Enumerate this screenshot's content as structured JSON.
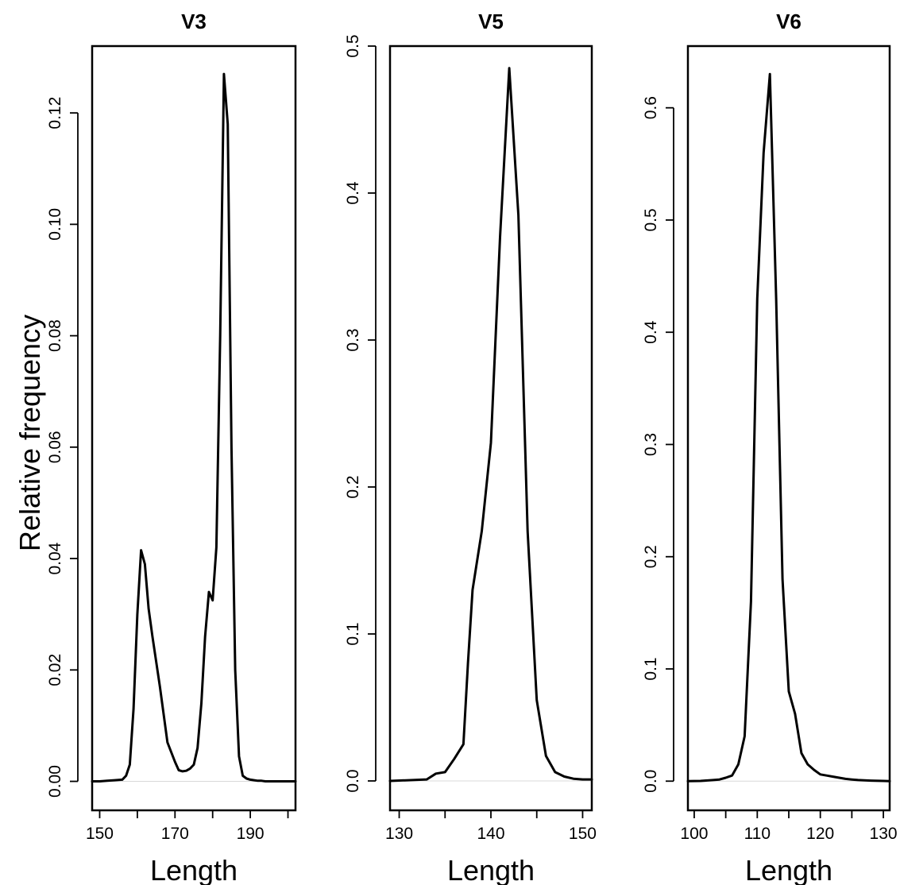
{
  "figure": {
    "ylabel": "Relative frequency"
  },
  "chart_data": [
    {
      "type": "line",
      "title": "V3",
      "xlabel": "Length",
      "ylabel": "Relative frequency",
      "xlim": [
        148,
        202
      ],
      "ylim": [
        -0.0052,
        0.132
      ],
      "xticks": [
        150,
        160,
        170,
        180,
        190,
        200
      ],
      "xtick_labels": [
        "150",
        "",
        "170",
        "",
        "190",
        ""
      ],
      "yticks": [
        0,
        0.02,
        0.04,
        0.06,
        0.08,
        0.1,
        0.12
      ],
      "ytick_labels": [
        "0.00",
        "0.02",
        "0.04",
        "0.06",
        "0.08",
        "0.10",
        "0.12"
      ],
      "grid": false,
      "series": [
        {
          "x": [
            148,
            150,
            152,
            154,
            156,
            157,
            158,
            159,
            160,
            161,
            162,
            163,
            164,
            166,
            168,
            170,
            171,
            172,
            173,
            174,
            175,
            176,
            177,
            178,
            179,
            180,
            181,
            182,
            183,
            184,
            185,
            186,
            187,
            188,
            189,
            190,
            191,
            192,
            193,
            194,
            196,
            198,
            200,
            202
          ],
          "y": [
            0,
            0,
            0.0001,
            0.0002,
            0.0003,
            0.001,
            0.003,
            0.013,
            0.03,
            0.0415,
            0.039,
            0.031,
            0.026,
            0.017,
            0.007,
            0.0035,
            0.002,
            0.0018,
            0.0019,
            0.0023,
            0.003,
            0.006,
            0.014,
            0.026,
            0.034,
            0.0325,
            0.042,
            0.08,
            0.127,
            0.118,
            0.06,
            0.02,
            0.0045,
            0.001,
            0.0005,
            0.0003,
            0.0002,
            0.0001,
            0.0001,
            0,
            0,
            0,
            0,
            0
          ]
        }
      ]
    },
    {
      "type": "line",
      "title": "V5",
      "xlabel": "Length",
      "ylabel": "",
      "xlim": [
        129,
        151
      ],
      "ylim": [
        -0.02,
        0.5
      ],
      "xticks": [
        130,
        135,
        140,
        145,
        150
      ],
      "xtick_labels": [
        "130",
        "",
        "140",
        "",
        "150"
      ],
      "yticks": [
        0,
        0.1,
        0.2,
        0.3,
        0.4,
        0.5
      ],
      "ytick_labels": [
        "0.0",
        "0.1",
        "0.2",
        "0.3",
        "0.4",
        "0.5"
      ],
      "grid": false,
      "series": [
        {
          "x": [
            129,
            131,
            133,
            134,
            135,
            136,
            137,
            137.5,
            138,
            139,
            140,
            141,
            142,
            143,
            144,
            145,
            146,
            147,
            148,
            149,
            150,
            151
          ],
          "y": [
            0,
            0.0005,
            0.001,
            0.005,
            0.006,
            0.015,
            0.025,
            0.08,
            0.13,
            0.17,
            0.23,
            0.37,
            0.485,
            0.385,
            0.17,
            0.055,
            0.017,
            0.006,
            0.003,
            0.0015,
            0.001,
            0.001
          ]
        }
      ]
    },
    {
      "type": "line",
      "title": "V6",
      "xlabel": "Length",
      "ylabel": "",
      "xlim": [
        99,
        131
      ],
      "ylim": [
        -0.026,
        0.655
      ],
      "xticks": [
        100,
        105,
        110,
        115,
        120,
        125,
        130
      ],
      "xtick_labels": [
        "100",
        "",
        "110",
        "",
        "120",
        "",
        "130"
      ],
      "yticks": [
        0,
        0.1,
        0.2,
        0.3,
        0.4,
        0.5,
        0.6
      ],
      "ytick_labels": [
        "0.0",
        "0.1",
        "0.2",
        "0.3",
        "0.4",
        "0.5",
        "0.6"
      ],
      "grid": false,
      "series": [
        {
          "x": [
            99,
            101,
            103,
            104,
            105,
            106,
            107,
            108,
            109,
            110,
            111,
            112,
            113,
            114,
            115,
            116,
            117,
            118,
            119,
            120,
            121,
            122,
            123,
            124,
            125,
            126,
            128,
            130,
            131
          ],
          "y": [
            0,
            0.0002,
            0.001,
            0.0015,
            0.003,
            0.005,
            0.015,
            0.04,
            0.16,
            0.43,
            0.56,
            0.63,
            0.43,
            0.18,
            0.08,
            0.06,
            0.025,
            0.015,
            0.01,
            0.006,
            0.005,
            0.004,
            0.003,
            0.002,
            0.0015,
            0.001,
            0.0005,
            0.0002,
            0
          ]
        }
      ]
    }
  ]
}
